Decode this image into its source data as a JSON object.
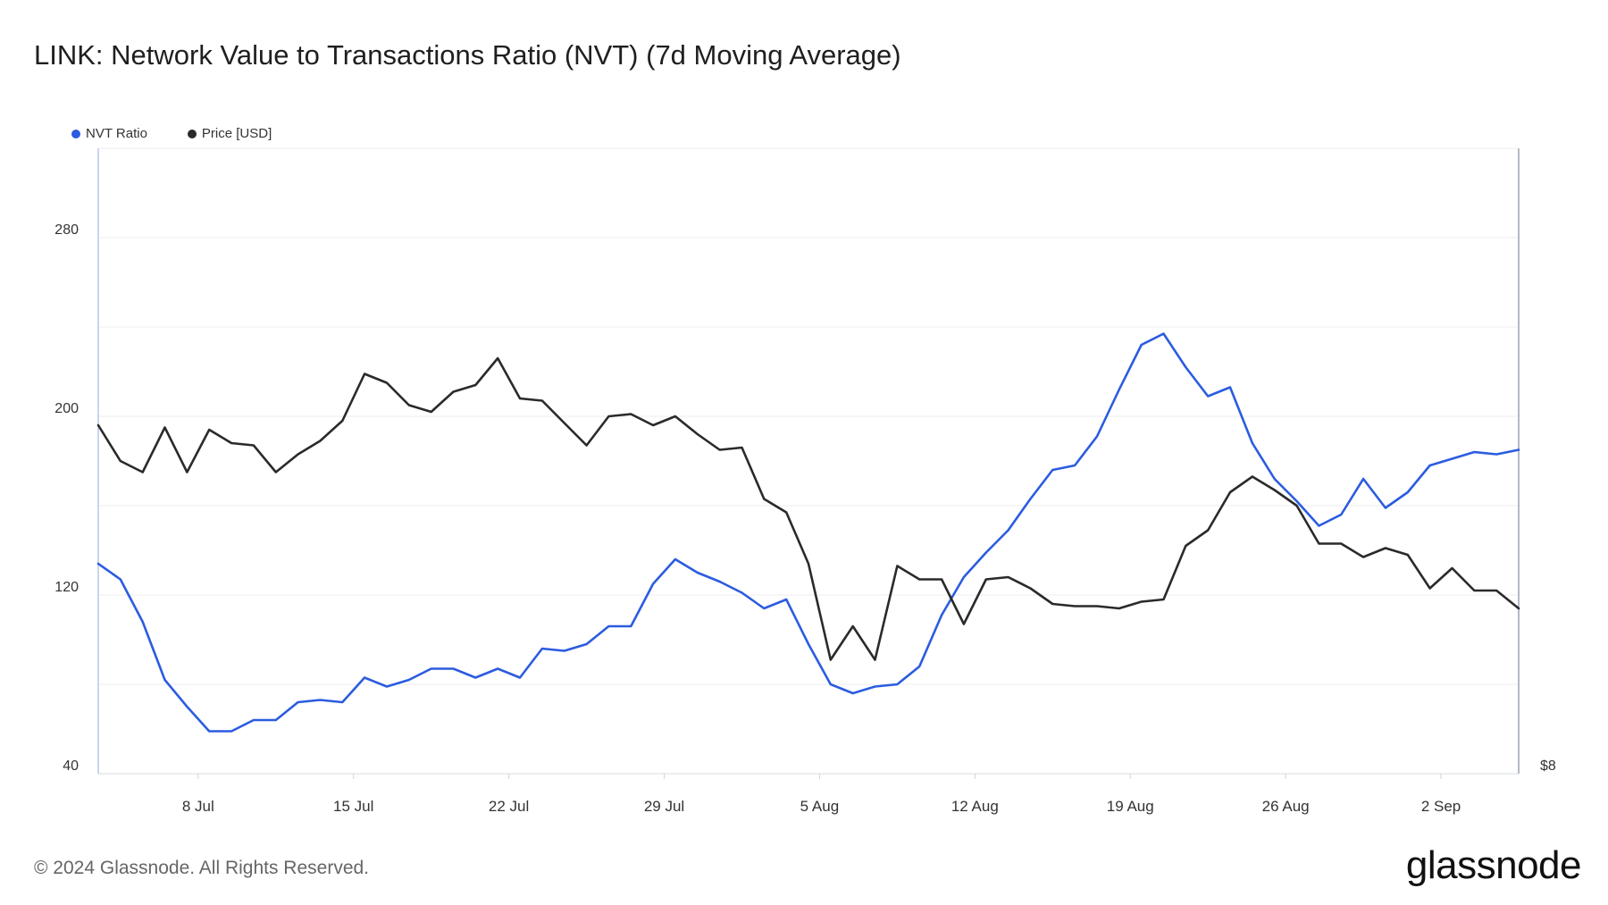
{
  "title": "LINK: Network Value to Transactions Ratio (NVT) (7d Moving Average)",
  "footer": "© 2024 Glassnode. All Rights Reserved.",
  "brand": "glassnode",
  "colors": {
    "nvt": "#2b5ce0",
    "price": "#2a2a2a",
    "grid": "#eeeeee",
    "axis": "#b8c7e6"
  },
  "chart_data": {
    "type": "line",
    "title": "LINK: Network Value to Transactions Ratio (NVT) (7d Moving Average)",
    "legend": [
      "NVT Ratio",
      "Price [USD]"
    ],
    "x_ticks": [
      "8 Jul",
      "15 Jul",
      "22 Jul",
      "29 Jul",
      "5 Aug",
      "12 Aug",
      "19 Aug",
      "26 Aug",
      "2 Sep"
    ],
    "x_tick_index": [
      4.5,
      11.5,
      18.5,
      25.5,
      32.5,
      39.5,
      46.5,
      53.5,
      60.5
    ],
    "ylim_left": [
      40,
      320
    ],
    "y_ticks_left": [
      "280",
      "200",
      "120",
      "40"
    ],
    "y_ticks_left_values": [
      280,
      200,
      120,
      40
    ],
    "right_tick_label": "$8",
    "series": [
      {
        "name": "NVT Ratio",
        "values": [
          134,
          127,
          108,
          82,
          70,
          59,
          59,
          64,
          64,
          72,
          73,
          72,
          83,
          79,
          82,
          87,
          87,
          83,
          87,
          83,
          96,
          95,
          98,
          106,
          106,
          125,
          136,
          130,
          126,
          121,
          114,
          118,
          98,
          80,
          76,
          79,
          80,
          88,
          111,
          128,
          139,
          149,
          163,
          176,
          178,
          191,
          212,
          232,
          237,
          222,
          209,
          213,
          188,
          172,
          162,
          151,
          156,
          172,
          159,
          166,
          178,
          181,
          184,
          183,
          185
        ]
      },
      {
        "name": "Price [USD]",
        "values": [
          196,
          180,
          175,
          195,
          175,
          194,
          188,
          187,
          175,
          183,
          189,
          198,
          219,
          215,
          205,
          202,
          211,
          214,
          226,
          208,
          207,
          197,
          187,
          200,
          201,
          196,
          200,
          192,
          185,
          186,
          163,
          157,
          134,
          91,
          106,
          91,
          133,
          127,
          127,
          107,
          127,
          128,
          123,
          116,
          115,
          115,
          114,
          117,
          118,
          142,
          149,
          166,
          173,
          167,
          160,
          143,
          143,
          137,
          141,
          138,
          123,
          132,
          122,
          122,
          114
        ]
      }
    ]
  }
}
